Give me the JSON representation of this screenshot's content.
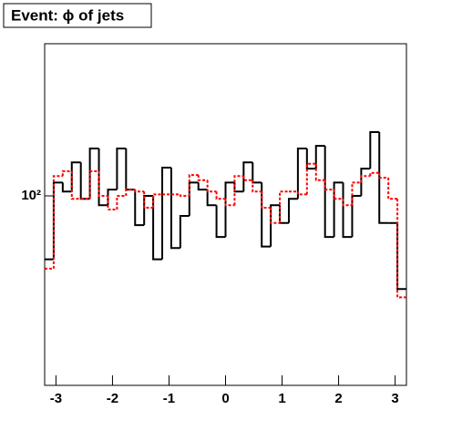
{
  "chart_data": {
    "type": "histogram",
    "title": "Event: ϕ of jets",
    "bins": [
      -3.2,
      -3.04,
      -2.88,
      -2.72,
      -2.56,
      -2.4,
      -2.24,
      -2.08,
      -1.92,
      -1.76,
      -1.6,
      -1.44,
      -1.28,
      -1.12,
      -0.96,
      -0.8,
      -0.64,
      -0.48,
      -0.32,
      -0.16,
      0,
      0.16,
      0.32,
      0.48,
      0.64,
      0.8,
      0.96,
      1.12,
      1.28,
      1.44,
      1.6,
      1.76,
      1.92,
      2.08,
      2.24,
      2.4,
      2.56,
      2.72,
      2.88,
      3.04,
      3.2
    ],
    "series": [
      {
        "color": "#000000",
        "values": [
          42,
          120,
          106,
          158,
          96,
          191,
          88,
          109,
          191,
          109,
          67,
          100,
          42,
          147,
          49,
          76,
          120,
          109,
          88,
          57,
          120,
          106,
          158,
          120,
          50,
          88,
          69,
          96,
          191,
          145,
          198,
          57,
          120,
          57,
          100,
          145,
          239,
          69,
          69,
          28
        ]
      },
      {
        "color": "#ff0000",
        "values": [
          37,
          131,
          140,
          96,
          96,
          140,
          100,
          83,
          100,
          109,
          106,
          85,
          102,
          102,
          102,
          100,
          133,
          124,
          106,
          96,
          88,
          131,
          124,
          106,
          85,
          69,
          106,
          106,
          102,
          155,
          124,
          109,
          96,
          88,
          120,
          131,
          137,
          128,
          96,
          25
        ]
      }
    ],
    "xlim": [
      -3.2,
      3.2
    ],
    "xticks": [
      -3,
      -2,
      -1,
      0,
      1,
      2,
      3
    ],
    "ylim": [
      7.5,
      800
    ],
    "yticks": [
      {
        "value": 100,
        "label": "10²"
      }
    ],
    "log_y": true
  }
}
